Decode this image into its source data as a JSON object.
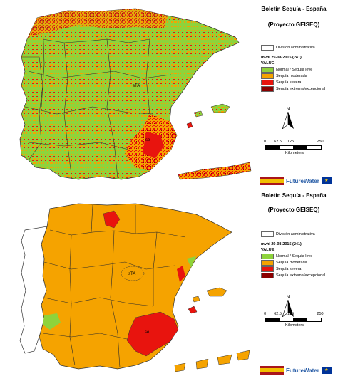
{
  "panels": [
    {
      "title": "Boletín Sequía - España",
      "subtitle": "(Proyecto GEISEQ)",
      "boundary_label": "División administrativa",
      "date_label": "mvhi 29-08-2015 (241)",
      "value_label": "VALUE",
      "classes": [
        {
          "label": "Normal / Sequía leve",
          "color": "#8ed33b"
        },
        {
          "label": "Sequía moderada",
          "color": "#f5a300"
        },
        {
          "label": "Sequía severa",
          "color": "#e8140e"
        },
        {
          "label": "Sequía extrema/excepcional",
          "color": "#8a0000"
        }
      ],
      "north": "N",
      "scale_ticks": [
        "0",
        "62.5",
        "125",
        "250"
      ],
      "scale_units": "Kilometers",
      "map_labels": [
        "sTA",
        "se"
      ],
      "logo_text": "FutureWater"
    },
    {
      "title": "Boletín Sequía - España",
      "subtitle": "(Proyecto GEISEQ)",
      "boundary_label": "División administrativa",
      "date_label": "mvhi 29-08-2015 (241)",
      "value_label": "VALUE",
      "classes": [
        {
          "label": "Normal / Sequía leve",
          "color": "#8ed33b"
        },
        {
          "label": "Sequía moderada",
          "color": "#f5a300"
        },
        {
          "label": "Sequía severa",
          "color": "#e8140e"
        },
        {
          "label": "Sequía extrema/excepcional",
          "color": "#8a0000"
        }
      ],
      "north": "N",
      "scale_ticks": [
        "0",
        "62.5",
        "125",
        "250"
      ],
      "scale_units": "Kilometers",
      "map_labels": [
        "sTA",
        "se"
      ],
      "logo_text": "FutureWater"
    }
  ]
}
